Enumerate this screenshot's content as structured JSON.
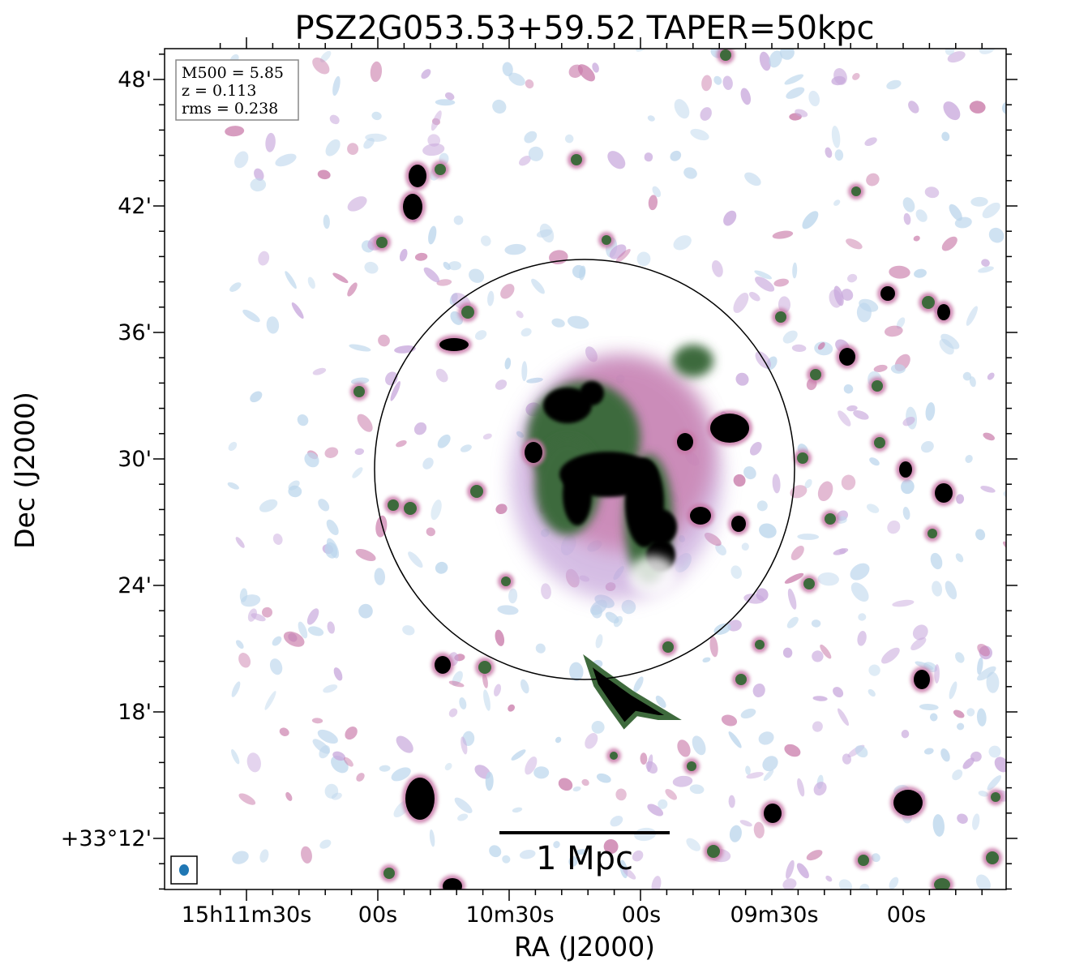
{
  "title": "PSZ2G053.53+59.52 TAPER=50kpc",
  "axes": {
    "xlabel": "RA (J2000)",
    "ylabel": "Dec (J2000)",
    "x_ticks": [
      "15h11m30s",
      "00s",
      "10m30s",
      "00s",
      "09m30s",
      "00s"
    ],
    "y_ticks": [
      "48'",
      "42'",
      "36'",
      "30'",
      "24'",
      "18'",
      "+33°12'"
    ]
  },
  "info_box": {
    "line1": "M500 = 5.85",
    "line2": "z = 0.113",
    "line3": "rms = 0.238"
  },
  "scale_bar": {
    "label": "1 Mpc"
  },
  "colors": {
    "faint": "#bcd6ec",
    "low": "#c8a8dc",
    "mid": "#c878a8",
    "green": "#3e6a3c",
    "core": "#000000",
    "beam": "#1f77b4"
  }
}
